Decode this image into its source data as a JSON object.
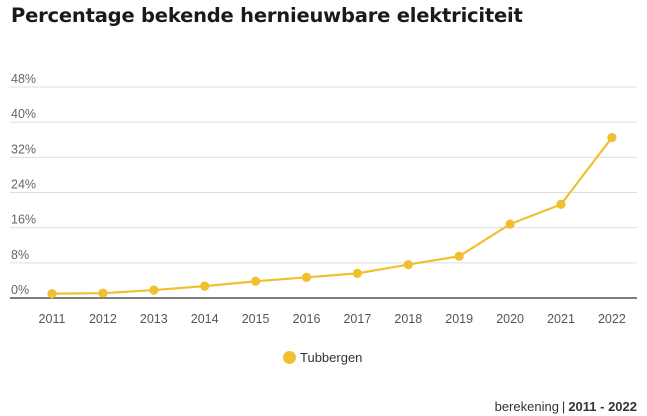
{
  "page": {
    "title": "Percentage bekende hernieuwbare elektriciteit"
  },
  "footer": {
    "label": "berekening",
    "period": "2011 - 2022"
  },
  "chart_data": {
    "type": "line",
    "title": "Percentage bekende hernieuwbare elektriciteit",
    "x": [
      "2011",
      "2012",
      "2013",
      "2014",
      "2015",
      "2016",
      "2017",
      "2018",
      "2019",
      "2020",
      "2021",
      "2022"
    ],
    "series": [
      {
        "name": "Tubbergen",
        "color": "#f0c030",
        "values": [
          1.0,
          1.1,
          1.8,
          2.7,
          3.8,
          4.7,
          5.6,
          7.6,
          9.5,
          16.8,
          21.3,
          36.5
        ]
      }
    ],
    "ylim": [
      0,
      48
    ],
    "yticks": [
      "0%",
      "8%",
      "16%",
      "24%",
      "32%",
      "40%",
      "48%"
    ],
    "ytick_values": [
      0,
      8,
      16,
      24,
      32,
      40,
      48
    ],
    "grid": true,
    "legend": "bottom-center"
  }
}
